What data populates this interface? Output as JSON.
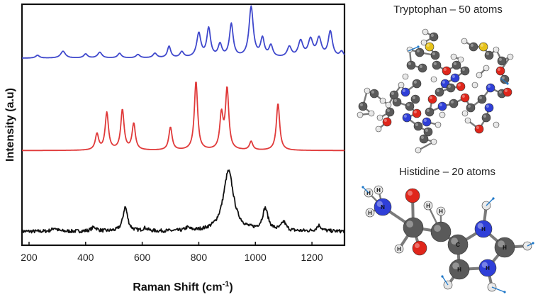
{
  "chart_data": {
    "type": "line",
    "xlabel": "Raman Shift (cm",
    "xlabel_sup": "-1",
    "xlabel_tail": ")",
    "ylabel": "Intensity (a.u)",
    "xlim": [
      175,
      1315
    ],
    "x_ticks": [
      200,
      400,
      600,
      800,
      1000,
      1200
    ],
    "grid": false,
    "legend": "none",
    "series": [
      {
        "color": "#3f48cc",
        "offset": 3.0,
        "baseline": 0.06,
        "peaks": [
          {
            "x": 230,
            "h": 0.05,
            "w": 8
          },
          {
            "x": 320,
            "h": 0.12,
            "w": 10
          },
          {
            "x": 400,
            "h": 0.07,
            "w": 8
          },
          {
            "x": 450,
            "h": 0.1,
            "w": 9
          },
          {
            "x": 520,
            "h": 0.08,
            "w": 8
          },
          {
            "x": 585,
            "h": 0.06,
            "w": 8
          },
          {
            "x": 645,
            "h": 0.08,
            "w": 8
          },
          {
            "x": 695,
            "h": 0.2,
            "w": 7
          },
          {
            "x": 740,
            "h": 0.1,
            "w": 8
          },
          {
            "x": 800,
            "h": 0.42,
            "w": 9
          },
          {
            "x": 835,
            "h": 0.5,
            "w": 8
          },
          {
            "x": 875,
            "h": 0.22,
            "w": 8
          },
          {
            "x": 915,
            "h": 0.58,
            "w": 8
          },
          {
            "x": 985,
            "h": 0.88,
            "w": 9
          },
          {
            "x": 1025,
            "h": 0.32,
            "w": 8
          },
          {
            "x": 1055,
            "h": 0.2,
            "w": 8
          },
          {
            "x": 1120,
            "h": 0.18,
            "w": 9
          },
          {
            "x": 1160,
            "h": 0.28,
            "w": 10
          },
          {
            "x": 1195,
            "h": 0.3,
            "w": 10
          },
          {
            "x": 1225,
            "h": 0.32,
            "w": 10
          },
          {
            "x": 1265,
            "h": 0.45,
            "w": 9
          },
          {
            "x": 1305,
            "h": 0.1,
            "w": 8
          }
        ]
      },
      {
        "color": "#e03a3a",
        "offset": 1.45,
        "baseline": 0.0,
        "peaks": [
          {
            "x": 440,
            "h": 0.28,
            "w": 7
          },
          {
            "x": 475,
            "h": 0.65,
            "w": 7
          },
          {
            "x": 530,
            "h": 0.7,
            "w": 7
          },
          {
            "x": 570,
            "h": 0.46,
            "w": 7
          },
          {
            "x": 700,
            "h": 0.4,
            "w": 7
          },
          {
            "x": 790,
            "h": 1.2,
            "w": 7
          },
          {
            "x": 880,
            "h": 0.6,
            "w": 7
          },
          {
            "x": 900,
            "h": 1.05,
            "w": 7
          },
          {
            "x": 985,
            "h": 0.15,
            "w": 7
          },
          {
            "x": 1080,
            "h": 0.82,
            "w": 7
          }
        ]
      },
      {
        "color": "#111111",
        "offset": 0.0,
        "baseline": 0.04,
        "noise": 0.03,
        "peaks": [
          {
            "x": 290,
            "h": 0.06,
            "w": 10
          },
          {
            "x": 430,
            "h": 0.07,
            "w": 12
          },
          {
            "x": 540,
            "h": 0.42,
            "w": 10
          },
          {
            "x": 610,
            "h": 0.05,
            "w": 10
          },
          {
            "x": 760,
            "h": 0.05,
            "w": 10
          },
          {
            "x": 905,
            "h": 1.05,
            "w": 22
          },
          {
            "x": 1035,
            "h": 0.38,
            "w": 12
          },
          {
            "x": 1100,
            "h": 0.15,
            "w": 10
          },
          {
            "x": 1225,
            "h": 0.1,
            "w": 10
          }
        ]
      }
    ]
  },
  "molecules": [
    {
      "title": "Tryptophan – 50 atoms"
    },
    {
      "title": "Histidine – 20 atoms"
    }
  ],
  "atom_labels": {
    "hydrogen": "H",
    "nitrogen": "N",
    "carbon": "C"
  },
  "colors": {
    "carbon": "#5a5a5a",
    "oxygen": "#e0261b",
    "nitrogen": "#2f3fd8",
    "hydrogen": "#e6e6e6",
    "sulfur": "#e6c21a",
    "vector": "#1f78c8"
  }
}
